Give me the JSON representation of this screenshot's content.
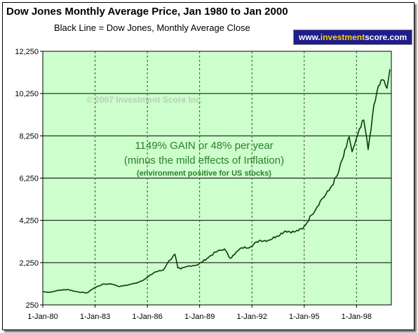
{
  "header": {
    "title": "Dow Jones Monthly Average Price, Jan 1980 to Jan 2000",
    "subtitle": "Black Line = Dow Jones, Monthly Average Close",
    "brand_prefix": "www.",
    "brand_highlight": "investment",
    "brand_suffix": "score.com"
  },
  "colors": {
    "plot_background": "#ccffcc",
    "line": "#0a3a0a",
    "annotation_text": "#2e7d2e"
  },
  "chart_data": {
    "type": "line",
    "title": "Dow Jones Monthly Average Price, Jan 1980 to Jan 2000",
    "subtitle": "Black Line = Dow Jones, Monthly Average Close",
    "xlabel": "",
    "ylabel": "",
    "ylim": [
      250,
      12250
    ],
    "xlim": [
      "1980-01",
      "1999-12"
    ],
    "y_ticks": [
      "250",
      "2,250",
      "4,250",
      "6,250",
      "8,250",
      "10,250",
      "12,250"
    ],
    "y_tick_values": [
      250,
      2250,
      4250,
      6250,
      8250,
      10250,
      12250
    ],
    "x_ticks": [
      "1-Jan-80",
      "1-Jan-83",
      "1-Jan-86",
      "1-Jan-89",
      "1-Jan-92",
      "1-Jan-95",
      "1-Jan-98"
    ],
    "grid": {
      "horizontal": true,
      "vertical": true,
      "vertical_style": "dashed"
    },
    "legend": "none",
    "annotations": [
      "© 2007 Investment Score Inc.",
      "1149% GAIN or 48% per year",
      "(minus the mild effects of Inflation)",
      "(environment positive for US stocks)"
    ],
    "series": [
      {
        "name": "Dow Jones",
        "points": [
          [
            "1980-01",
            870
          ],
          [
            "1980-06",
            850
          ],
          [
            "1980-12",
            940
          ],
          [
            "1981-06",
            980
          ],
          [
            "1981-12",
            880
          ],
          [
            "1982-06",
            820
          ],
          [
            "1982-08",
            840
          ],
          [
            "1982-12",
            1040
          ],
          [
            "1983-06",
            1220
          ],
          [
            "1983-12",
            1250
          ],
          [
            "1984-06",
            1120
          ],
          [
            "1984-12",
            1200
          ],
          [
            "1985-06",
            1300
          ],
          [
            "1985-12",
            1500
          ],
          [
            "1986-06",
            1800
          ],
          [
            "1986-12",
            1900
          ],
          [
            "1987-03",
            2250
          ],
          [
            "1987-08",
            2650
          ],
          [
            "1987-10",
            2000
          ],
          [
            "1987-12",
            1950
          ],
          [
            "1988-06",
            2100
          ],
          [
            "1988-12",
            2150
          ],
          [
            "1989-06",
            2450
          ],
          [
            "1989-12",
            2750
          ],
          [
            "1990-06",
            2900
          ],
          [
            "1990-10",
            2450
          ],
          [
            "1990-12",
            2600
          ],
          [
            "1991-06",
            2950
          ],
          [
            "1991-12",
            3000
          ],
          [
            "1992-06",
            3300
          ],
          [
            "1992-12",
            3300
          ],
          [
            "1993-06",
            3500
          ],
          [
            "1993-12",
            3750
          ],
          [
            "1994-06",
            3700
          ],
          [
            "1994-12",
            3850
          ],
          [
            "1995-06",
            4500
          ],
          [
            "1995-12",
            5150
          ],
          [
            "1996-06",
            5650
          ],
          [
            "1996-12",
            6400
          ],
          [
            "1997-06",
            7700
          ],
          [
            "1997-08",
            8200
          ],
          [
            "1997-10",
            7500
          ],
          [
            "1997-12",
            7900
          ],
          [
            "1998-06",
            9000
          ],
          [
            "1998-09",
            7600
          ],
          [
            "1998-12",
            9200
          ],
          [
            "1999-04",
            10600
          ],
          [
            "1999-07",
            10900
          ],
          [
            "1999-10",
            10500
          ],
          [
            "1999-12",
            11400
          ]
        ]
      }
    ]
  }
}
